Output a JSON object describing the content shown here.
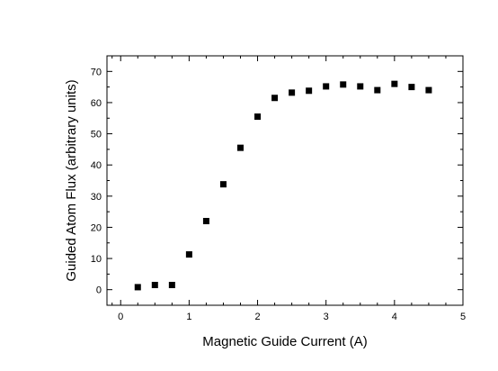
{
  "chart_data": {
    "type": "scatter",
    "title": "",
    "xlabel": "Magnetic Guide Current (A)",
    "ylabel": "Guided Atom Flux (arbitrary units)",
    "xlim": [
      -0.2,
      5.0
    ],
    "ylim": [
      -5,
      75
    ],
    "x_ticks": [
      0,
      1,
      2,
      3,
      4,
      5
    ],
    "y_ticks": [
      0,
      10,
      20,
      30,
      40,
      50,
      60,
      70
    ],
    "grid": false,
    "marker": "square",
    "marker_color": "#000000",
    "series": [
      {
        "x": [
          0.25,
          0.5,
          0.75,
          1.0,
          1.25,
          1.5,
          1.75,
          2.0,
          2.25,
          2.5,
          2.75,
          3.0,
          3.25,
          3.5,
          3.75,
          4.0,
          4.25,
          4.5
        ],
        "y": [
          0.8,
          1.5,
          1.5,
          11.3,
          22.0,
          33.8,
          45.5,
          55.5,
          61.5,
          63.2,
          63.8,
          65.2,
          65.8,
          65.2,
          64.0,
          66.0,
          65.0,
          64.0
        ]
      }
    ]
  }
}
